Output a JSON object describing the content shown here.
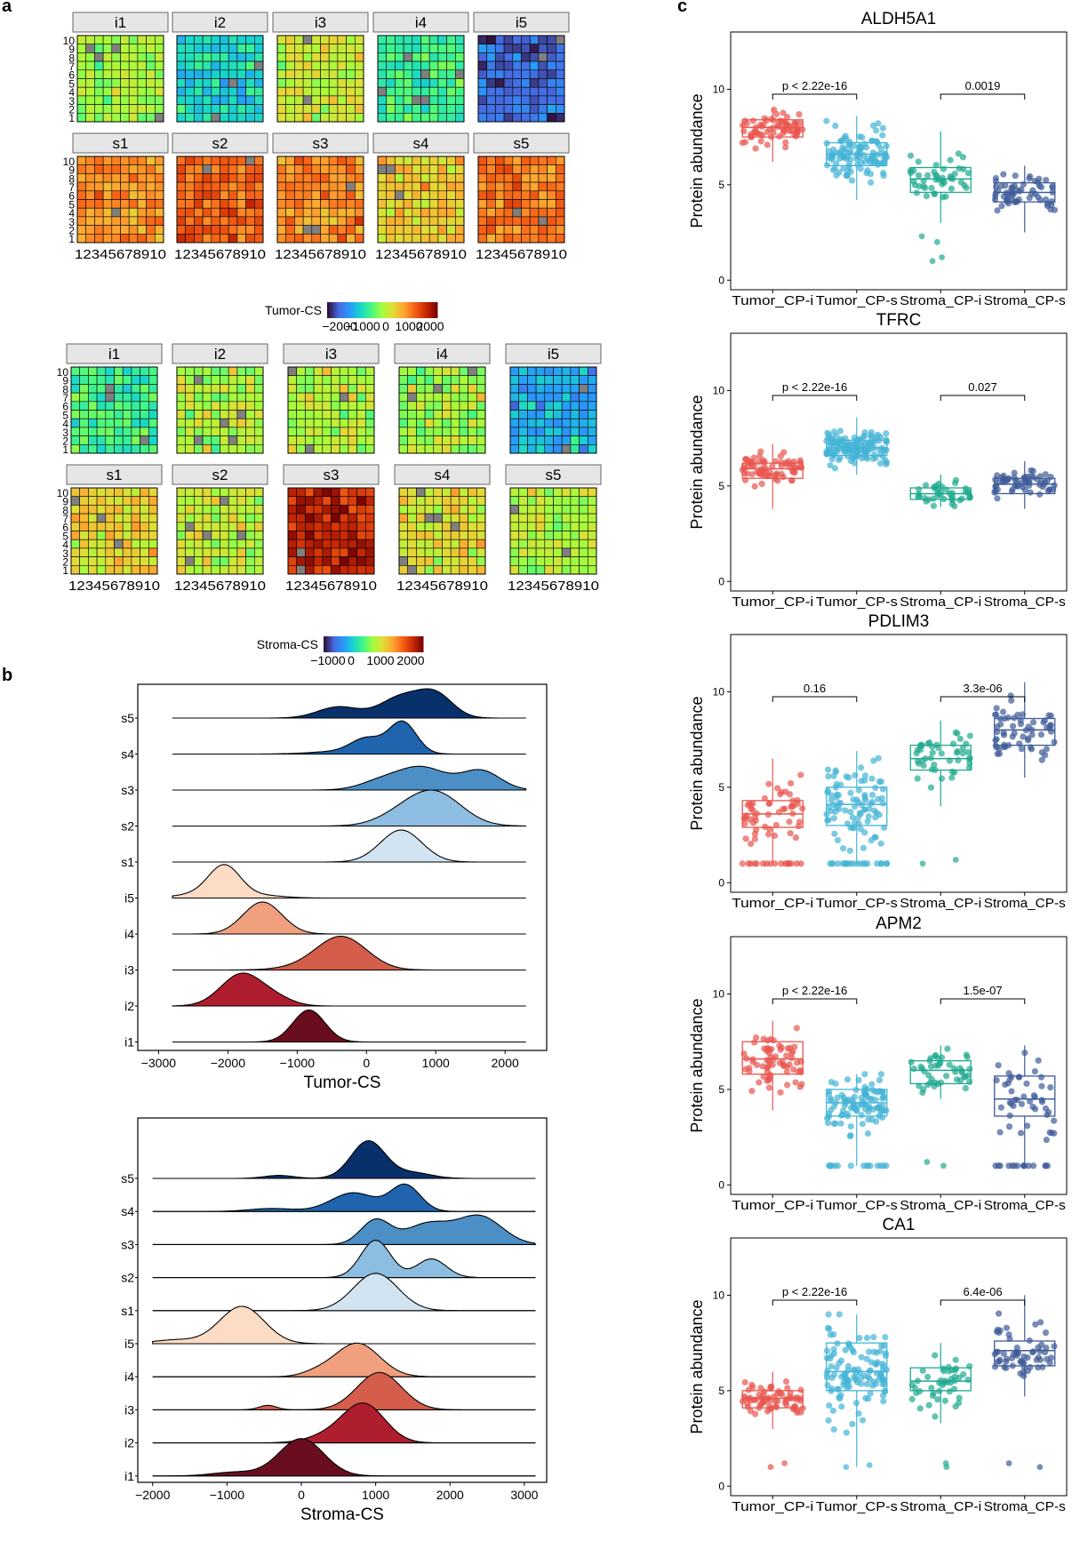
{
  "panel_labels": [
    "a",
    "b",
    "c"
  ],
  "chart_data": [
    {
      "type": "heatmap",
      "panel": "a",
      "facets": [
        "i1",
        "i2",
        "i3",
        "i4",
        "i5",
        "s1",
        "s2",
        "s3",
        "s4",
        "s5"
      ],
      "grid": {
        "rows": 10,
        "cols": 10
      },
      "x_ticks": [
        "1",
        "2",
        "3",
        "4",
        "5",
        "6",
        "7",
        "8",
        "9",
        "10"
      ],
      "y_ticks": [
        "1",
        "2",
        "3",
        "4",
        "5",
        "6",
        "7",
        "8",
        "9",
        "10"
      ],
      "colorbar": {
        "label": "Tumor-CS",
        "ticks": [
          "−2000",
          "−1000",
          "0",
          "1000",
          "2000"
        ],
        "range": [
          -2500,
          2500
        ]
      },
      "approx_mean_values": {
        "i1": 0,
        "i2": -1000,
        "i3": 300,
        "i4": -600,
        "i5": -2000,
        "s1": 1100,
        "s2": 1500,
        "s3": 1200,
        "s4": 700,
        "s5": 1300
      }
    },
    {
      "type": "heatmap",
      "panel": "a",
      "facets": [
        "i1",
        "i2",
        "i3",
        "i4",
        "i5",
        "s1",
        "s2",
        "s3",
        "s4",
        "s5"
      ],
      "grid": {
        "rows": 10,
        "cols": 10
      },
      "x_ticks": [
        "1",
        "2",
        "3",
        "4",
        "5",
        "6",
        "7",
        "8",
        "9",
        "10"
      ],
      "y_ticks": [
        "1",
        "2",
        "3",
        "4",
        "5",
        "6",
        "7",
        "8",
        "9",
        "10"
      ],
      "colorbar": {
        "label": "Stroma-CS",
        "ticks": [
          "−1000",
          "0",
          "1000",
          "2000"
        ],
        "range": [
          -1800,
          2600
        ]
      },
      "approx_mean_values": {
        "i1": -100,
        "i2": 500,
        "i3": 500,
        "i4": 450,
        "i5": -800,
        "s1": 900,
        "s2": 600,
        "s3": 2200,
        "s4": 800,
        "s5": 500
      }
    },
    {
      "type": "ridgeline",
      "panel": "b",
      "xlabel": "Tumor-CS",
      "x_ticks": [
        "−3000",
        "−2000",
        "−1000",
        "0",
        "1000",
        "2000"
      ],
      "xlim": [
        -3300,
        2600
      ],
      "categories": [
        "s5",
        "s4",
        "s3",
        "s2",
        "s1",
        "i5",
        "i4",
        "i3",
        "i2",
        "i1"
      ],
      "series": [
        {
          "name": "s5",
          "color": "#08306b",
          "peaks": [
            [
              -400,
              300,
              0.35
            ],
            [
              500,
              300,
              0.65
            ],
            [
              1000,
              250,
              0.7
            ]
          ]
        },
        {
          "name": "s4",
          "color": "#1f64ad",
          "peaks": [
            [
              0,
              220,
              0.45
            ],
            [
              520,
              200,
              1.0
            ],
            [
              -400,
              400,
              0.08
            ]
          ]
        },
        {
          "name": "s3",
          "color": "#4b8fc6",
          "peaks": [
            [
              200,
              300,
              0.25
            ],
            [
              800,
              350,
              0.7
            ],
            [
              1650,
              280,
              0.6
            ]
          ]
        },
        {
          "name": "s2",
          "color": "#8dbde0",
          "peaks": [
            [
              500,
              350,
              0.3
            ],
            [
              1000,
              380,
              1.0
            ]
          ]
        },
        {
          "name": "s1",
          "color": "#d2e3f1",
          "peaks": [
            [
              500,
              300,
              1.0
            ]
          ]
        },
        {
          "name": "i5",
          "color": "#fcdcc4",
          "peaks": [
            [
              -2050,
              230,
              1.0
            ],
            [
              -2500,
              300,
              0.1
            ],
            [
              -1500,
              300,
              0.08
            ]
          ]
        },
        {
          "name": "i4",
          "color": "#f0a07e",
          "peaks": [
            [
              -1500,
              280,
              1.0
            ]
          ]
        },
        {
          "name": "i3",
          "color": "#d45d4b",
          "peaks": [
            [
              -350,
              360,
              1.0
            ],
            [
              -800,
              400,
              0.1
            ]
          ]
        },
        {
          "name": "i2",
          "color": "#ae1e2e",
          "peaks": [
            [
              -1800,
              300,
              1.0
            ],
            [
              -1300,
              250,
              0.2
            ]
          ]
        },
        {
          "name": "i1",
          "color": "#6a0d1f",
          "peaks": [
            [
              -830,
              230,
              1.0
            ]
          ]
        }
      ]
    },
    {
      "type": "ridgeline",
      "panel": "b",
      "xlabel": "Stroma-CS",
      "x_ticks": [
        "−2000",
        "−1000",
        "0",
        "1000",
        "2000",
        "3000"
      ],
      "xlim": [
        -2200,
        3300
      ],
      "categories": [
        "s5",
        "s4",
        "s3",
        "s2",
        "s1",
        "i5",
        "i4",
        "i3",
        "i2",
        "i1"
      ],
      "series": [
        {
          "name": "s5",
          "color": "#08306b",
          "peaks": [
            [
              900,
              230,
              1.0
            ],
            [
              -300,
              200,
              0.08
            ],
            [
              1500,
              250,
              0.15
            ]
          ]
        },
        {
          "name": "s4",
          "color": "#1f64ad",
          "peaks": [
            [
              700,
              300,
              0.5
            ],
            [
              1400,
              200,
              0.7
            ],
            [
              -400,
              300,
              0.08
            ]
          ]
        },
        {
          "name": "s3",
          "color": "#4b8fc6",
          "peaks": [
            [
              1000,
              200,
              0.65
            ],
            [
              1700,
              300,
              0.55
            ],
            [
              2400,
              300,
              0.75
            ]
          ]
        },
        {
          "name": "s2",
          "color": "#8dbde0",
          "peaks": [
            [
              1000,
              200,
              1.0
            ],
            [
              1750,
              200,
              0.5
            ]
          ]
        },
        {
          "name": "s1",
          "color": "#d2e3f1",
          "peaks": [
            [
              1000,
              300,
              1.0
            ]
          ]
        },
        {
          "name": "i5",
          "color": "#fcdcc4",
          "peaks": [
            [
              -800,
              300,
              1.0
            ],
            [
              -1700,
              300,
              0.1
            ]
          ]
        },
        {
          "name": "i4",
          "color": "#f0a07e",
          "peaks": [
            [
              750,
              300,
              0.9
            ],
            [
              200,
              200,
              0.1
            ]
          ]
        },
        {
          "name": "i3",
          "color": "#d45d4b",
          "peaks": [
            [
              1050,
              300,
              1.0
            ],
            [
              -450,
              120,
              0.12
            ]
          ]
        },
        {
          "name": "i2",
          "color": "#ae1e2e",
          "peaks": [
            [
              850,
              280,
              1.0
            ],
            [
              400,
              300,
              0.2
            ]
          ]
        },
        {
          "name": "i1",
          "color": "#6a0d1f",
          "peaks": [
            [
              0,
              300,
              1.0
            ],
            [
              -900,
              300,
              0.1
            ]
          ]
        }
      ]
    },
    {
      "type": "box",
      "panel": "c",
      "ylabel": "Protein abundance",
      "y_ticks": [
        "0",
        "5",
        "10"
      ],
      "ylim": [
        -0.5,
        13
      ],
      "categories": [
        "Tumor_CP-i",
        "Tumor_CP-s",
        "Stroma_CP-i",
        "Stroma_CP-s"
      ],
      "colors": [
        "#e8554e",
        "#45b4d6",
        "#1fa98f",
        "#3e5b99"
      ],
      "plots": [
        {
          "title": "ALDH5A1",
          "boxes": [
            {
              "q1": 7.5,
              "median": 8.0,
              "q3": 8.4,
              "low": 6.2,
              "high": 9.0,
              "n": 70
            },
            {
              "q1": 6.0,
              "median": 6.6,
              "q3": 7.2,
              "low": 4.2,
              "high": 8.6,
              "n": 110
            },
            {
              "q1": 4.6,
              "median": 5.3,
              "q3": 5.9,
              "low": 3.0,
              "high": 7.8,
              "n": 45,
              "out": [
                1,
                1.2,
                2,
                2.3
              ]
            },
            {
              "q1": 4.1,
              "median": 4.6,
              "q3": 5.1,
              "low": 2.5,
              "high": 6.0,
              "n": 60
            }
          ],
          "brackets": [
            {
              "from": 0,
              "to": 1,
              "label": "p < 2.22e-16"
            },
            {
              "from": 2,
              "to": 3,
              "label": "0.0019"
            }
          ]
        },
        {
          "title": "TFRC",
          "boxes": [
            {
              "q1": 5.4,
              "median": 5.9,
              "q3": 6.2,
              "low": 3.8,
              "high": 7.2,
              "n": 70
            },
            {
              "q1": 6.6,
              "median": 7.0,
              "q3": 7.4,
              "low": 5.6,
              "high": 8.6,
              "n": 130
            },
            {
              "q1": 4.3,
              "median": 4.6,
              "q3": 4.9,
              "low": 3.9,
              "high": 5.6,
              "n": 40
            },
            {
              "q1": 4.6,
              "median": 5.1,
              "q3": 5.4,
              "low": 3.8,
              "high": 6.3,
              "n": 60
            }
          ],
          "brackets": [
            {
              "from": 0,
              "to": 1,
              "label": "p < 2.22e-16"
            },
            {
              "from": 2,
              "to": 3,
              "label": "0.027"
            }
          ]
        },
        {
          "title": "PDLIM3",
          "boxes": [
            {
              "q1": 2.9,
              "median": 3.6,
              "q3": 4.3,
              "low": 1.0,
              "high": 6.5,
              "n": 70,
              "floor": 1.0
            },
            {
              "q1": 3.0,
              "median": 4.1,
              "q3": 5.0,
              "low": 1.0,
              "high": 6.9,
              "n": 110,
              "floor": 1.0
            },
            {
              "q1": 5.9,
              "median": 6.5,
              "q3": 7.2,
              "low": 4.0,
              "high": 8.5,
              "n": 45,
              "out": [
                1,
                1.2
              ]
            },
            {
              "q1": 7.2,
              "median": 8.0,
              "q3": 8.6,
              "low": 5.5,
              "high": 10.5,
              "n": 60
            }
          ],
          "brackets": [
            {
              "from": 0,
              "to": 1,
              "label": "0.16"
            },
            {
              "from": 2,
              "to": 3,
              "label": "3.3e-06"
            }
          ]
        },
        {
          "title": "APM2",
          "boxes": [
            {
              "q1": 5.8,
              "median": 6.6,
              "q3": 7.5,
              "low": 3.9,
              "high": 8.6,
              "n": 70
            },
            {
              "q1": 3.6,
              "median": 4.3,
              "q3": 5.0,
              "low": 1.0,
              "high": 5.8,
              "n": 110,
              "floor": 1.0
            },
            {
              "q1": 5.3,
              "median": 6.0,
              "q3": 6.5,
              "low": 4.5,
              "high": 7.3,
              "n": 45,
              "out": [
                1,
                1.2
              ]
            },
            {
              "q1": 3.6,
              "median": 4.5,
              "q3": 5.7,
              "low": 1.0,
              "high": 7.3,
              "n": 60,
              "floor": 1.0
            }
          ],
          "brackets": [
            {
              "from": 0,
              "to": 1,
              "label": "p < 2.22e-16"
            },
            {
              "from": 2,
              "to": 3,
              "label": "1.5e-07"
            }
          ]
        },
        {
          "title": "CA1",
          "boxes": [
            {
              "q1": 4.1,
              "median": 4.6,
              "q3": 5.0,
              "low": 3.0,
              "high": 6.0,
              "n": 70,
              "out": [
                1,
                1.2
              ]
            },
            {
              "q1": 5.0,
              "median": 6.0,
              "q3": 7.5,
              "low": 1.0,
              "high": 9.0,
              "n": 120,
              "out": [
                1,
                1.1
              ]
            },
            {
              "q1": 5.0,
              "median": 5.5,
              "q3": 6.2,
              "low": 3.3,
              "high": 7.5,
              "n": 45,
              "out": [
                1,
                1.2
              ]
            },
            {
              "q1": 6.3,
              "median": 7.1,
              "q3": 7.6,
              "low": 4.7,
              "high": 10.0,
              "n": 60,
              "out": [
                1,
                1.2
              ]
            }
          ],
          "brackets": [
            {
              "from": 0,
              "to": 1,
              "label": "p < 2.22e-16"
            },
            {
              "from": 2,
              "to": 3,
              "label": "6.4e-06"
            }
          ]
        }
      ]
    }
  ]
}
